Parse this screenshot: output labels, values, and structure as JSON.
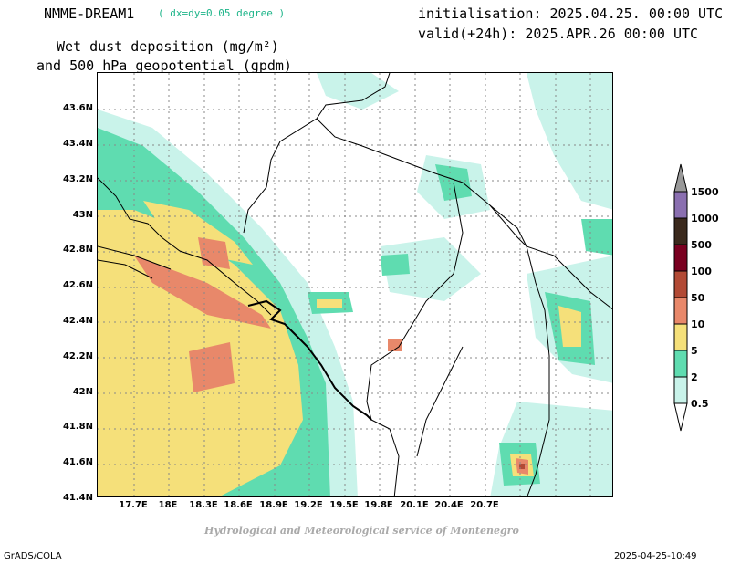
{
  "header": {
    "model_name": "NMME-DREAM1",
    "resolution": "( dx=dy=0.05 degree )",
    "initialisation": "initialisation: 2025.04.25. 00:00 UTC",
    "valid": "valid(+24h): 2025.APR.26 00:00 UTC",
    "field_line1": "Wet dust deposition (mg/m²)",
    "field_line2": "and 500 hPa geopotential (gpdm)"
  },
  "map": {
    "lat_labels": [
      "43.6N",
      "43.4N",
      "43.2N",
      "43N",
      "42.8N",
      "42.6N",
      "42.4N",
      "42.2N",
      "42N",
      "41.8N",
      "41.6N",
      "41.4N"
    ],
    "lon_labels": [
      "17.7E",
      "18E",
      "18.3E",
      "18.6E",
      "18.9E",
      "19.2E",
      "19.5E",
      "19.8E",
      "20.1E",
      "20.4E",
      "20.7E"
    ],
    "grid": "dotted",
    "coastline_color": "#000000"
  },
  "colorbar": {
    "levels": [
      "1500",
      "1000",
      "500",
      "100",
      "50",
      "10",
      "5",
      "2",
      "0.5"
    ],
    "colors": [
      "#8a6fb0",
      "#3b2a1d",
      "#7a0020",
      "#b24a35",
      "#e8886a",
      "#f5e07a",
      "#5fdcb0",
      "#c9f3ea"
    ],
    "over_color": "#999999",
    "under_color": "#ffffff"
  },
  "footer": {
    "credit": "Hydrological and Meteorological service of Montenegro",
    "left": "GrADS/COLA",
    "right": "2025-04-25-10:49"
  }
}
